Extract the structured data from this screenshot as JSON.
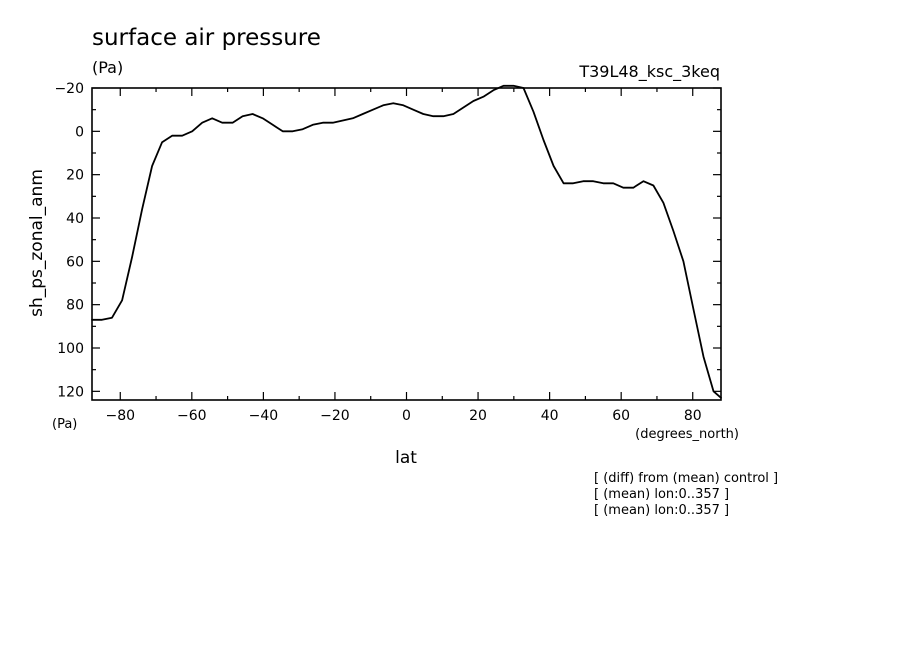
{
  "chart_data": {
    "type": "line",
    "title": "surface air pressure",
    "title_units": "(Pa)",
    "experiment": "T39L48_ksc_3keq",
    "ylabel": "sh_ps_zonal_anm",
    "yunits": "(Pa)",
    "xlabel": "lat",
    "xunits": "(degrees_north)",
    "xlim": [
      -87.9,
      87.9
    ],
    "ylim": [
      -20,
      124
    ],
    "y_inverted": true,
    "grid": false,
    "xticks": [
      -80,
      -60,
      -40,
      -20,
      0,
      20,
      40,
      60,
      80
    ],
    "yticks": [
      -20,
      0,
      20,
      40,
      60,
      80,
      100,
      120
    ],
    "xtick_labels": [
      "−80",
      "−60",
      "−40",
      "−20",
      "0",
      "20",
      "40",
      "60",
      "80"
    ],
    "ytick_labels": [
      "−20",
      "0",
      "20",
      "40",
      "60",
      "80",
      "100",
      "120"
    ],
    "notes": [
      "[ (diff) from (mean) control ]",
      "[ (mean) lon:0..357 ]",
      "[ (mean) lon:0..357 ]"
    ],
    "line_color": "#000000",
    "series": [
      {
        "x": [
          -87.9,
          -85.1,
          -82.3,
          -79.5,
          -76.7,
          -73.9,
          -71.1,
          -68.3,
          -65.5,
          -62.7,
          -59.9,
          -57.1,
          -54.3,
          -51.5,
          -48.6,
          -45.8,
          -43.0,
          -40.2,
          -37.4,
          -34.6,
          -31.8,
          -29.0,
          -26.2,
          -23.4,
          -20.6,
          -17.8,
          -15.0,
          -12.2,
          -9.4,
          -6.5,
          -3.7,
          -0.9,
          1.9,
          4.7,
          7.5,
          10.3,
          13.1,
          15.9,
          18.7,
          21.5,
          24.3,
          27.1,
          29.9,
          32.7,
          35.5,
          38.3,
          41.1,
          43.9,
          46.6,
          49.4,
          52.2,
          55.0,
          57.8,
          60.6,
          63.4,
          66.2,
          69.0,
          71.8,
          74.6,
          77.4,
          80.2,
          83.0,
          85.8,
          87.9
        ],
        "values": [
          87,
          87,
          86,
          78,
          58,
          36,
          16,
          5,
          2,
          2,
          0,
          -4,
          -6,
          -4,
          -4,
          -7,
          -8,
          -6,
          -3,
          0,
          0,
          -1,
          -3,
          -4,
          -4,
          -5,
          -6,
          -8,
          -10,
          -12,
          -13,
          -12,
          -10,
          -8,
          -7,
          -7,
          -8,
          -11,
          -14,
          -16,
          -19,
          -21,
          -21,
          -20,
          -9,
          4,
          16,
          24,
          24,
          23,
          23,
          24,
          24,
          26,
          26,
          23,
          25,
          33,
          46,
          60,
          82,
          104,
          120,
          123
        ]
      }
    ]
  }
}
